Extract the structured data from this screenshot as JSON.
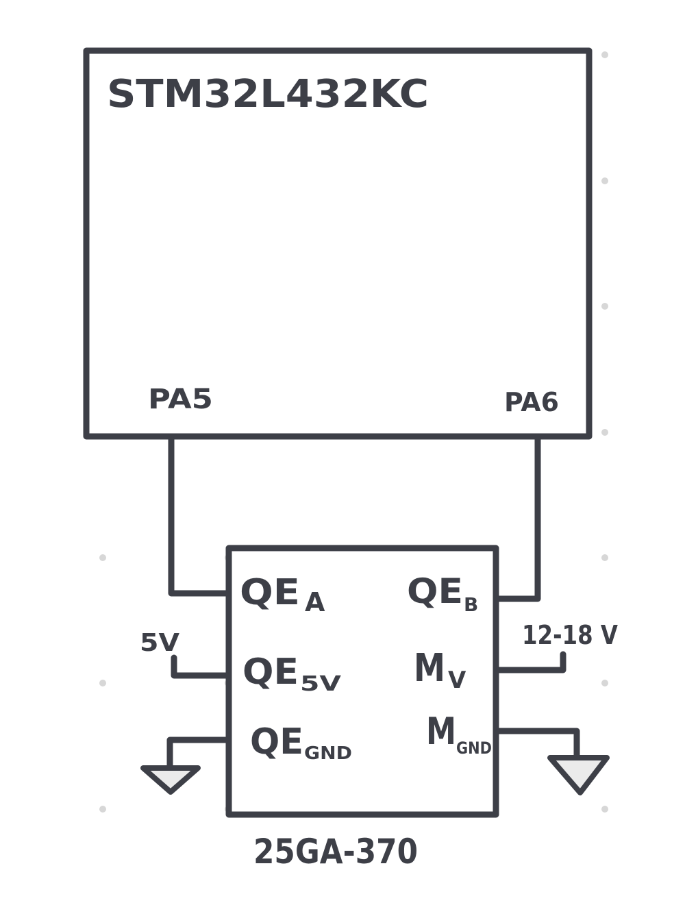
{
  "diagram": {
    "mcu_label": "STM32L432KC",
    "mcu_pin_left": "PA5",
    "mcu_pin_right": "PA6",
    "motor_part_label": "25GA-370",
    "pins": {
      "qe_a": {
        "base": "QE",
        "sub": "A"
      },
      "qe_b": {
        "base": "QE",
        "sub": "B"
      },
      "qe_5v": {
        "base": "QE",
        "sub": "5V"
      },
      "qe_gnd": {
        "base": "QE",
        "sub": "GND"
      },
      "m_v": {
        "base": "M",
        "sub": "V"
      },
      "m_gnd": {
        "base": "M",
        "sub": "GND"
      }
    },
    "supply_5v_label": "5V",
    "supply_motor_label": "12-18 V"
  },
  "colors": {
    "ink": "#3d3f47",
    "grid_dot": "#d7d7d7",
    "ground_fill": "#ebebeb",
    "background": "#ffffff"
  }
}
